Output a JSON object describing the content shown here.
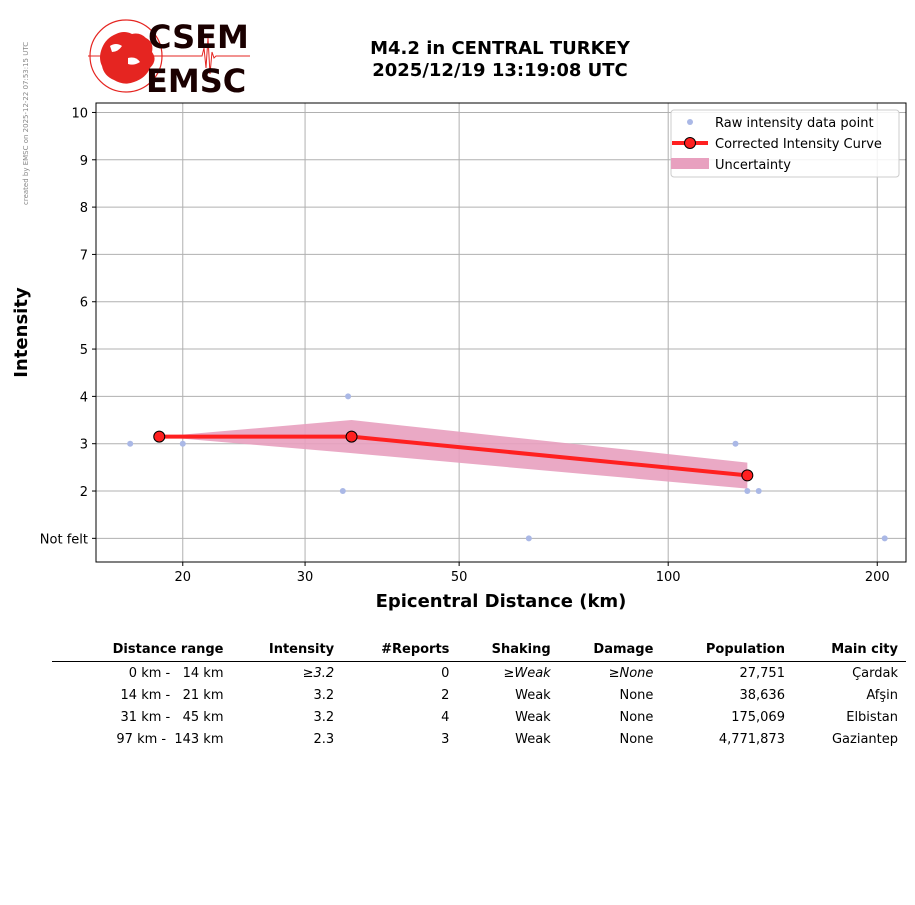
{
  "credit": "created by EMSC on 2025-12-22 07:53:15 UTC",
  "logo": {
    "line1": "CSEM",
    "line2": "EMSC",
    "icon": "europe-map-seismogram-logo"
  },
  "title": {
    "line1": "M4.2 in CENTRAL TURKEY",
    "line2": "2025/12/19 13:19:08 UTC"
  },
  "colors": {
    "raw": "#aab8e6",
    "curve": "#ff2020",
    "curve_marker": "#ff2020",
    "uncertainty": "#e8a0bf",
    "grid": "#b0b0b0"
  },
  "chart_data": {
    "type": "line",
    "xlabel": "Epicentral Distance (km)",
    "ylabel": "Intensity",
    "x_scale": "log",
    "xlim": [
      15,
      220
    ],
    "ylim": [
      0.5,
      10.2
    ],
    "x_ticks": [
      {
        "value": 20,
        "label": "20"
      },
      {
        "value": 30,
        "label": "30"
      },
      {
        "value": 50,
        "label": "50"
      },
      {
        "value": 100,
        "label": "100"
      },
      {
        "value": 200,
        "label": "200"
      }
    ],
    "y_ticks": [
      {
        "value": 1,
        "label": "Not felt"
      },
      {
        "value": 2,
        "label": "2"
      },
      {
        "value": 3,
        "label": "3"
      },
      {
        "value": 4,
        "label": "4"
      },
      {
        "value": 5,
        "label": "5"
      },
      {
        "value": 6,
        "label": "6"
      },
      {
        "value": 7,
        "label": "7"
      },
      {
        "value": 8,
        "label": "8"
      },
      {
        "value": 9,
        "label": "9"
      },
      {
        "value": 10,
        "label": "10"
      }
    ],
    "grid": true,
    "legend_position": "top-right",
    "legend": {
      "raw": "Raw intensity data point",
      "curve": "Corrected Intensity Curve",
      "uncertainty": "Uncertainty"
    },
    "raw_points": [
      {
        "x": 16.8,
        "y": 3
      },
      {
        "x": 20,
        "y": 3
      },
      {
        "x": 34.6,
        "y": 4
      },
      {
        "x": 34.0,
        "y": 2
      },
      {
        "x": 63,
        "y": 1
      },
      {
        "x": 125,
        "y": 3
      },
      {
        "x": 130,
        "y": 2
      },
      {
        "x": 135,
        "y": 2
      },
      {
        "x": 205,
        "y": 1
      }
    ],
    "curve": [
      {
        "x": 18.5,
        "y": 3.15
      },
      {
        "x": 35.0,
        "y": 3.15
      },
      {
        "x": 130,
        "y": 2.33
      }
    ],
    "uncertainty_upper": [
      {
        "x": 18.5,
        "y": 3.15
      },
      {
        "x": 35.0,
        "y": 3.5
      },
      {
        "x": 130,
        "y": 2.6
      }
    ],
    "uncertainty_lower": [
      {
        "x": 18.5,
        "y": 3.15
      },
      {
        "x": 35.0,
        "y": 2.8
      },
      {
        "x": 130,
        "y": 2.05
      }
    ]
  },
  "table": {
    "headers": [
      "Distance range",
      "Intensity",
      "#Reports",
      "Shaking",
      "Damage",
      "Population",
      "Main city"
    ],
    "rows": [
      {
        "distance": "0 km -   14 km",
        "intensity": "≥3.2",
        "reports": "0",
        "shaking": "≥Weak",
        "damage": "≥None",
        "population": "27,751",
        "city": "Çardak",
        "italic": true
      },
      {
        "distance": "14 km -   21 km",
        "intensity": "3.2",
        "reports": "2",
        "shaking": "Weak",
        "damage": "None",
        "population": "38,636",
        "city": "Afşin",
        "italic": false
      },
      {
        "distance": "31 km -   45 km",
        "intensity": "3.2",
        "reports": "4",
        "shaking": "Weak",
        "damage": "None",
        "population": "175,069",
        "city": "Elbistan",
        "italic": false
      },
      {
        "distance": "97 km -  143 km",
        "intensity": "2.3",
        "reports": "3",
        "shaking": "Weak",
        "damage": "None",
        "population": "4,771,873",
        "city": "Gaziantep",
        "italic": false
      }
    ]
  }
}
